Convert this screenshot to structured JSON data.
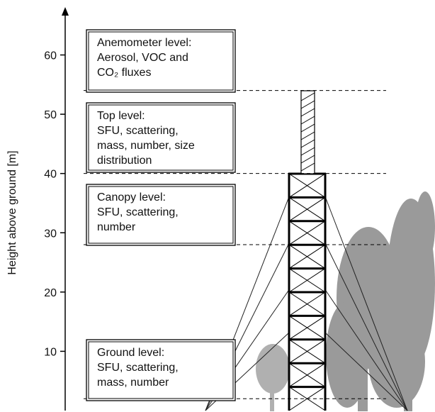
{
  "axis": {
    "label": "Height above ground [m]",
    "ylim": [
      0,
      67
    ],
    "yticks": [
      10,
      20,
      30,
      40,
      50,
      60
    ]
  },
  "levels": [
    54,
    40,
    28,
    2
  ],
  "boxes": [
    {
      "lines": [
        "Anemometer level:",
        "Aerosol, VOC and",
        "CO₂ fluxes"
      ]
    },
    {
      "lines": [
        "Top level:",
        "SFU, scattering,",
        "mass, number, size",
        "distribution"
      ]
    },
    {
      "lines": [
        "Canopy level:",
        "SFU, scattering,",
        "number"
      ]
    },
    {
      "lines": [
        "Ground level:",
        "SFU, scattering,",
        "mass, number"
      ]
    }
  ]
}
